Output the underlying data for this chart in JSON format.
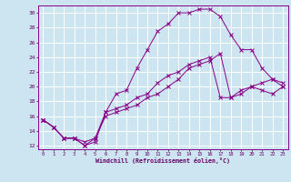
{
  "title": "",
  "xlabel": "Windchill (Refroidissement éolien,°C)",
  "ylabel": "",
  "bg_color": "#cce5f0",
  "grid_color": "#ffffff",
  "line_color": "#880088",
  "xlim": [
    -0.5,
    23.5
  ],
  "ylim": [
    11.5,
    31.0
  ],
  "yticks": [
    12,
    14,
    16,
    18,
    20,
    22,
    24,
    26,
    28,
    30
  ],
  "xticks": [
    0,
    1,
    2,
    3,
    4,
    5,
    6,
    7,
    8,
    9,
    10,
    11,
    12,
    13,
    14,
    15,
    16,
    17,
    18,
    19,
    20,
    21,
    22,
    23
  ],
  "series1_x": [
    0,
    1,
    2,
    3,
    4,
    5,
    6,
    7,
    8,
    9,
    10,
    11,
    12,
    13,
    14,
    15,
    16,
    17,
    18,
    19,
    20,
    21,
    22,
    23
  ],
  "series1_y": [
    15.5,
    14.5,
    13.0,
    13.0,
    12.0,
    12.5,
    16.5,
    19.0,
    19.5,
    22.5,
    25.0,
    27.5,
    28.5,
    30.0,
    30.0,
    30.5,
    30.5,
    29.5,
    27.0,
    25.0,
    25.0,
    22.5,
    21.0,
    20.0
  ],
  "series2_x": [
    0,
    1,
    2,
    3,
    4,
    5,
    6,
    7,
    8,
    9,
    10,
    11,
    12,
    13,
    14,
    15,
    16,
    17,
    18,
    19,
    20,
    21,
    22,
    23
  ],
  "series2_y": [
    15.5,
    14.5,
    13.0,
    13.0,
    12.5,
    13.0,
    16.5,
    17.0,
    17.5,
    18.5,
    19.0,
    20.5,
    21.5,
    22.0,
    23.0,
    23.5,
    24.0,
    18.5,
    18.5,
    19.5,
    20.0,
    19.5,
    19.0,
    20.0
  ],
  "series3_x": [
    0,
    1,
    2,
    3,
    4,
    5,
    6,
    7,
    8,
    9,
    10,
    11,
    12,
    13,
    14,
    15,
    16,
    17,
    18,
    19,
    20,
    21,
    22,
    23
  ],
  "series3_y": [
    15.5,
    14.5,
    13.0,
    13.0,
    12.0,
    13.0,
    16.0,
    16.5,
    17.0,
    17.5,
    18.5,
    19.0,
    20.0,
    21.0,
    22.5,
    23.0,
    23.5,
    24.5,
    18.5,
    19.0,
    20.0,
    20.5,
    21.0,
    20.5
  ]
}
